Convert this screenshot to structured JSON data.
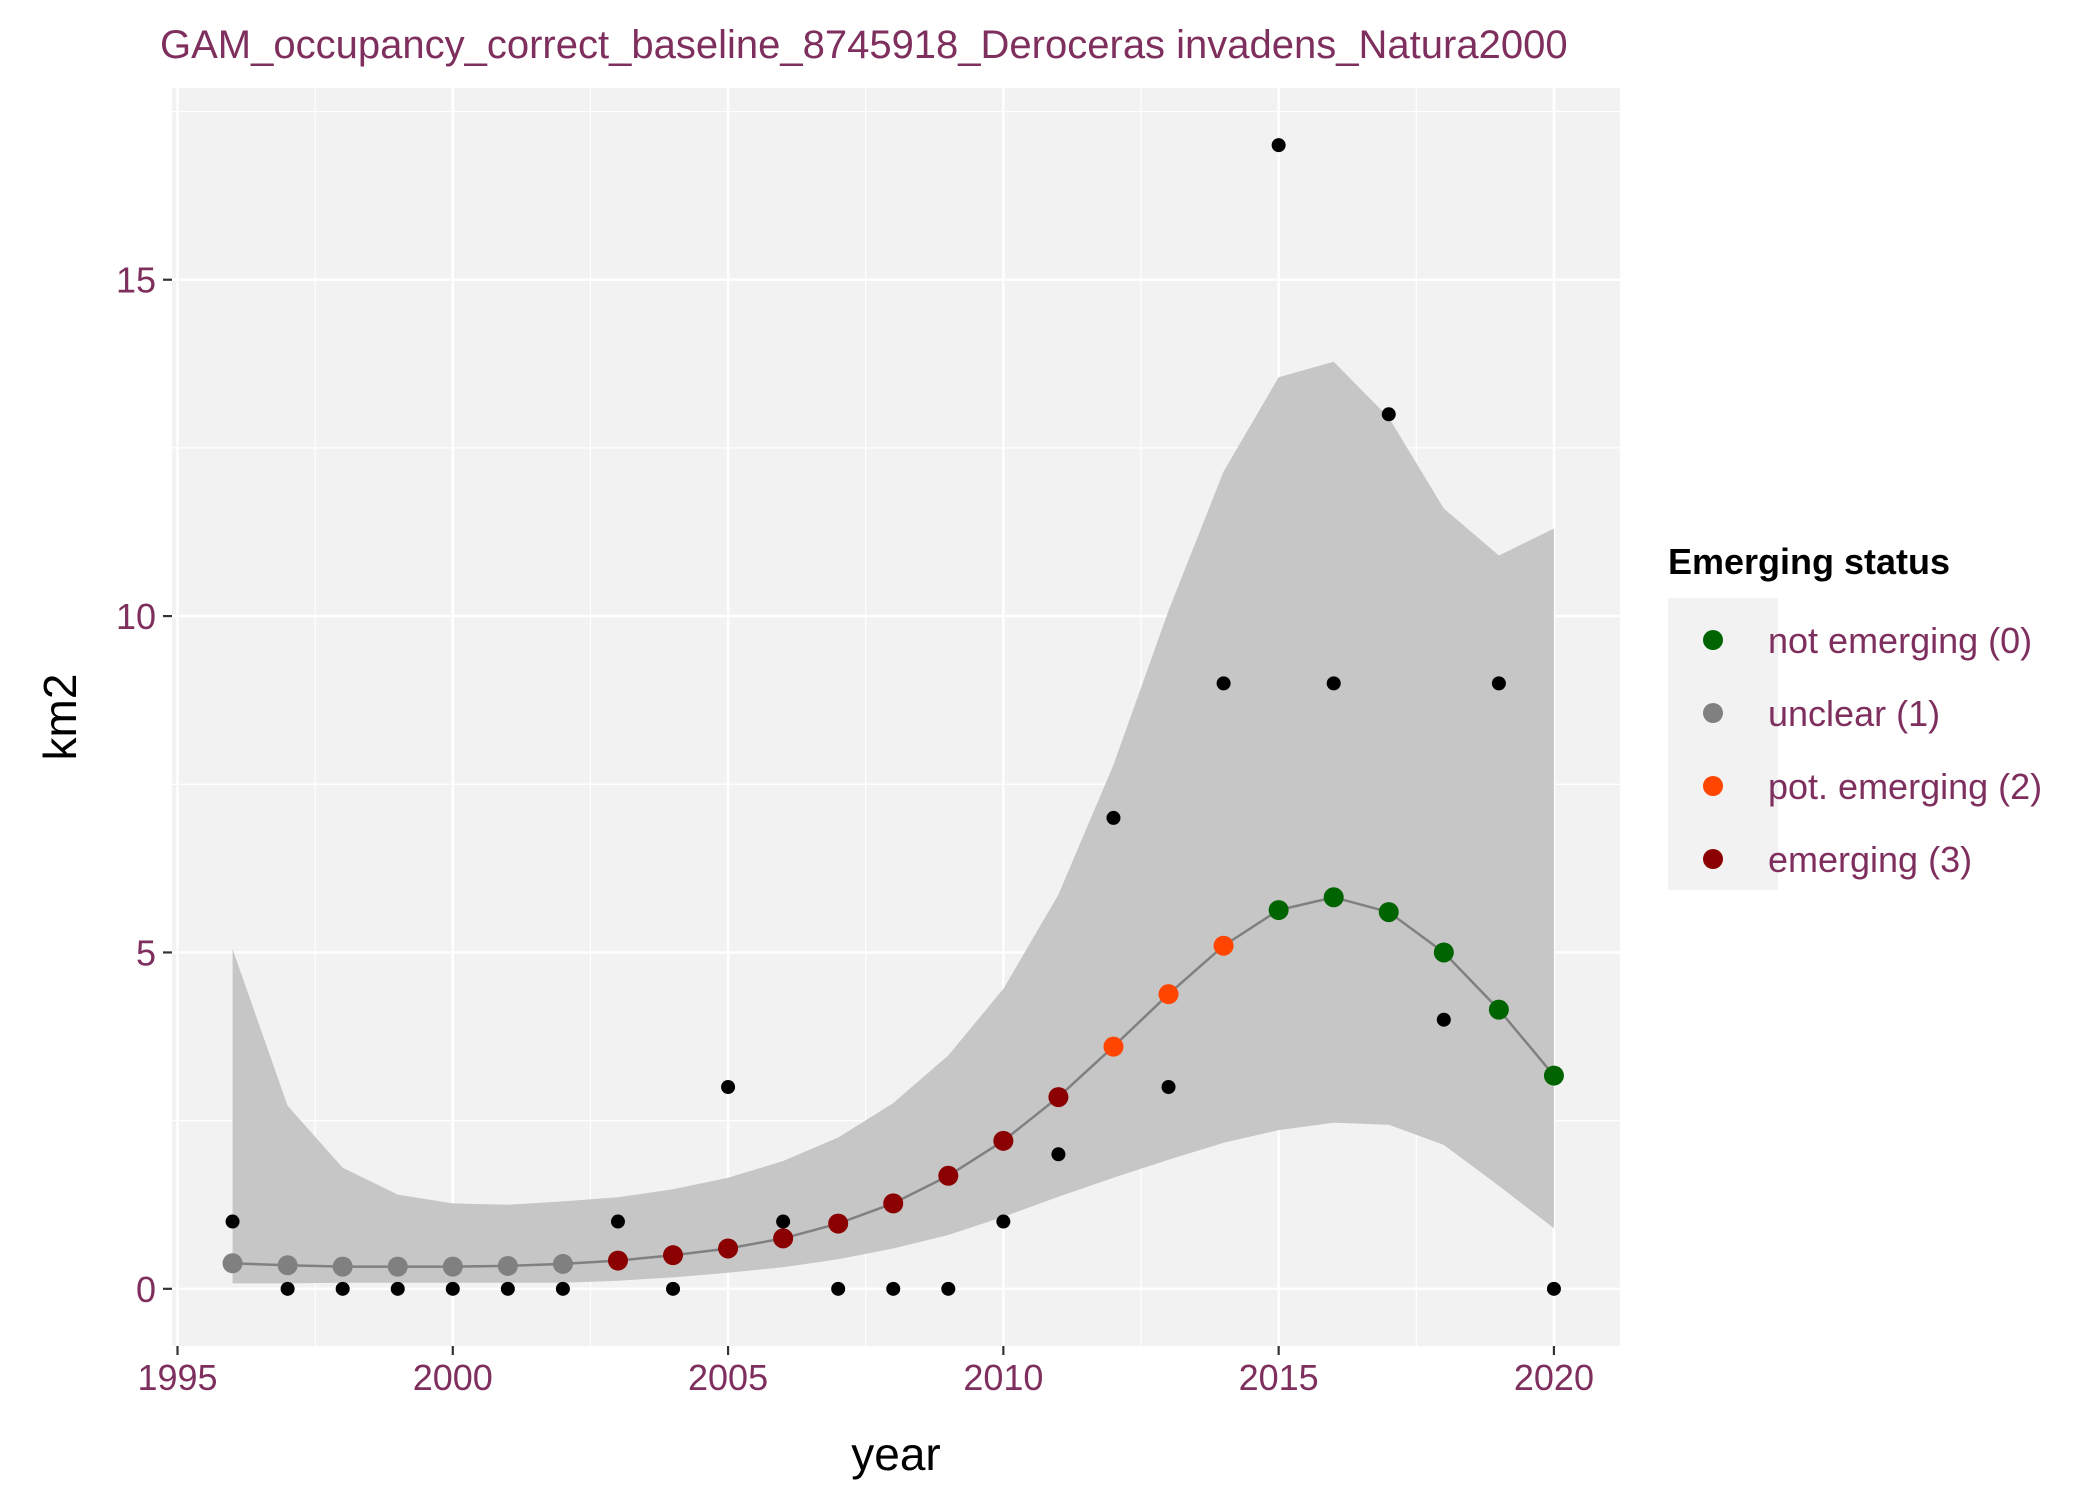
{
  "colors": {
    "text": "#7e2f5d",
    "panel_bg": "#f2f2f2",
    "grid": "#ffffff",
    "ribbon": "#c6c6c6",
    "trend_line": "#808080",
    "observed_point": "#000000",
    "not_emerging": "#006400",
    "unclear": "#808080",
    "pot_emerging": "#ff4500",
    "emerging": "#8b0000"
  },
  "chart_data": {
    "type": "line",
    "title": "GAM_occupancy_correct_baseline_8745918_Deroceras invadens_Natura2000",
    "xlabel": "year",
    "ylabel": "km2",
    "xlim": [
      1994.9,
      2021.2
    ],
    "ylim": [
      -0.85,
      17.85
    ],
    "grid": true,
    "x_ticks": [
      1995,
      2000,
      2005,
      2010,
      2015,
      2020
    ],
    "x_tick_labels": [
      "1995",
      "2000",
      "2005",
      "2010",
      "2015",
      "2020"
    ],
    "y_ticks": [
      0,
      5,
      10,
      15
    ],
    "y_tick_labels": [
      "0",
      "5",
      "10",
      "15"
    ],
    "observed": {
      "x": [
        1996,
        1997,
        1998,
        1999,
        2000,
        2001,
        2002,
        2003,
        2004,
        2005,
        2006,
        2007,
        2008,
        2009,
        2010,
        2011,
        2012,
        2013,
        2014,
        2015,
        2016,
        2017,
        2018,
        2019,
        2020
      ],
      "y": [
        1,
        0,
        0,
        0,
        0,
        0,
        0,
        1,
        0,
        3,
        1,
        0,
        0,
        0,
        1,
        2,
        7,
        3,
        9,
        17,
        9,
        13,
        4,
        9,
        0
      ]
    },
    "fit": {
      "x": [
        1996,
        1997,
        1998,
        1999,
        2000,
        2001,
        2002,
        2003,
        2004,
        2005,
        2006,
        2007,
        2008,
        2009,
        2010,
        2011,
        2012,
        2013,
        2014,
        2015,
        2016,
        2017,
        2018,
        2019,
        2020
      ],
      "y": [
        0.38,
        0.35,
        0.33,
        0.33,
        0.33,
        0.34,
        0.37,
        0.42,
        0.5,
        0.6,
        0.75,
        0.97,
        1.27,
        1.68,
        2.2,
        2.85,
        3.6,
        4.38,
        5.1,
        5.63,
        5.82,
        5.6,
        5.0,
        4.15,
        3.17
      ],
      "lower": [
        0.08,
        0.08,
        0.09,
        0.09,
        0.09,
        0.09,
        0.09,
        0.12,
        0.17,
        0.24,
        0.32,
        0.44,
        0.6,
        0.8,
        1.07,
        1.37,
        1.65,
        1.92,
        2.17,
        2.36,
        2.47,
        2.44,
        2.14,
        1.53,
        0.9
      ],
      "upper": [
        5.05,
        2.72,
        1.8,
        1.4,
        1.27,
        1.25,
        1.3,
        1.36,
        1.48,
        1.65,
        1.9,
        2.25,
        2.76,
        3.47,
        4.46,
        5.86,
        7.79,
        10.08,
        12.15,
        13.55,
        13.78,
        12.95,
        11.6,
        10.9,
        11.3
      ],
      "status": [
        "unclear (1)",
        "unclear (1)",
        "unclear (1)",
        "unclear (1)",
        "unclear (1)",
        "unclear (1)",
        "unclear (1)",
        "emerging (3)",
        "emerging (3)",
        "emerging (3)",
        "emerging (3)",
        "emerging (3)",
        "emerging (3)",
        "emerging (3)",
        "emerging (3)",
        "emerging (3)",
        "pot. emerging (2)",
        "pot. emerging (2)",
        "pot. emerging (2)",
        "not emerging (0)",
        "not emerging (0)",
        "not emerging (0)",
        "not emerging (0)",
        "not emerging (0)",
        "not emerging (0)"
      ]
    },
    "legend": {
      "title": "Emerging status",
      "placement": "right",
      "items": [
        {
          "label": "not emerging (0)",
          "color": "#006400"
        },
        {
          "label": "unclear (1)",
          "color": "#808080"
        },
        {
          "label": "pot. emerging (2)",
          "color": "#ff4500"
        },
        {
          "label": "emerging (3)",
          "color": "#8b0000"
        }
      ]
    }
  }
}
